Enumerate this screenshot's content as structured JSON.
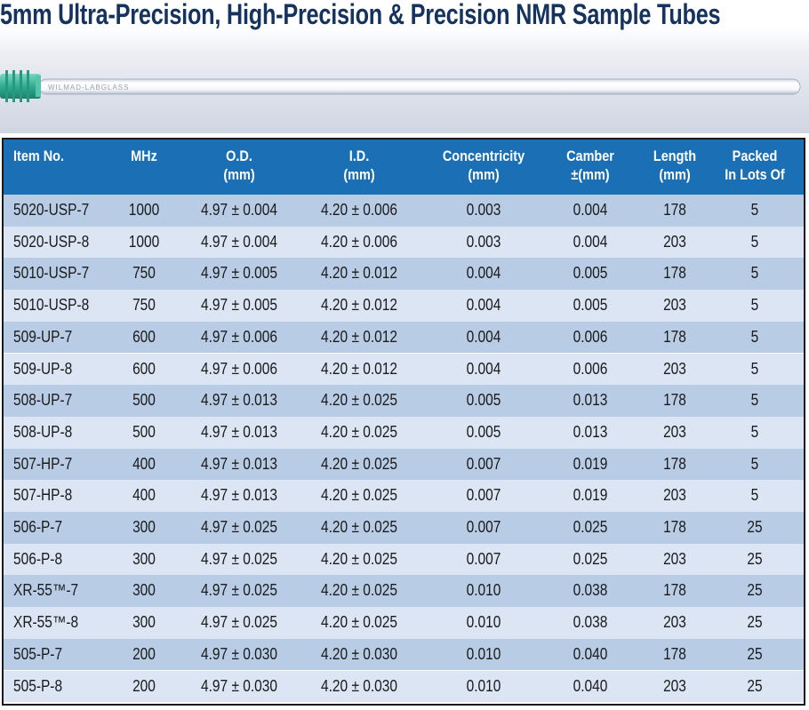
{
  "title": "5mm Ultra-Precision, High-Precision & Precision NMR Sample Tubes",
  "tube_imprint": "WILMAD-LABGLASS",
  "colors": {
    "header_blue": "#1a6fb5",
    "row_dark": "#b9cce6",
    "row_light": "#dbe5f3",
    "title": "#16335e",
    "cap": "#2fae93"
  },
  "table": {
    "headers": [
      {
        "key": "item",
        "line1": "Item No.",
        "line2": ""
      },
      {
        "key": "mhz",
        "line1": "MHz",
        "line2": ""
      },
      {
        "key": "od",
        "line1": "O.D.",
        "line2": "(mm)"
      },
      {
        "key": "id",
        "line1": "I.D.",
        "line2": "(mm)"
      },
      {
        "key": "conc",
        "line1": "Concentricity",
        "line2": "(mm)"
      },
      {
        "key": "camber",
        "line1": "Camber",
        "line2": "±(mm)"
      },
      {
        "key": "length",
        "line1": "Length",
        "line2": "(mm)"
      },
      {
        "key": "packed",
        "line1": "Packed",
        "line2": "In Lots Of"
      }
    ],
    "rows": [
      [
        "5020-USP-7",
        "1000",
        "4.97 ± 0.004",
        "4.20 ± 0.006",
        "0.003",
        "0.004",
        "178",
        "5"
      ],
      [
        "5020-USP-8",
        "1000",
        "4.97 ± 0.004",
        "4.20 ± 0.006",
        "0.003",
        "0.004",
        "203",
        "5"
      ],
      [
        "5010-USP-7",
        "750",
        "4.97 ± 0.005",
        "4.20 ± 0.012",
        "0.004",
        "0.005",
        "178",
        "5"
      ],
      [
        "5010-USP-8",
        "750",
        "4.97 ± 0.005",
        "4.20 ± 0.012",
        "0.004",
        "0.005",
        "203",
        "5"
      ],
      [
        "509-UP-7",
        "600",
        "4.97 ± 0.006",
        "4.20 ± 0.012",
        "0.004",
        "0.006",
        "178",
        "5"
      ],
      [
        "509-UP-8",
        "600",
        "4.97 ± 0.006",
        "4.20 ± 0.012",
        "0.004",
        "0.006",
        "203",
        "5"
      ],
      [
        "508-UP-7",
        "500",
        "4.97 ± 0.013",
        "4.20 ± 0.025",
        "0.005",
        "0.013",
        "178",
        "5"
      ],
      [
        "508-UP-8",
        "500",
        "4.97 ± 0.013",
        "4.20 ± 0.025",
        "0.005",
        "0.013",
        "203",
        "5"
      ],
      [
        "507-HP-7",
        "400",
        "4.97 ± 0.013",
        "4.20 ± 0.025",
        "0.007",
        "0.019",
        "178",
        "5"
      ],
      [
        "507-HP-8",
        "400",
        "4.97 ± 0.013",
        "4.20 ± 0.025",
        "0.007",
        "0.019",
        "203",
        "5"
      ],
      [
        "506-P-7",
        "300",
        "4.97 ± 0.025",
        "4.20 ± 0.025",
        "0.007",
        "0.025",
        "178",
        "25"
      ],
      [
        "506-P-8",
        "300",
        "4.97 ± 0.025",
        "4.20 ± 0.025",
        "0.007",
        "0.025",
        "203",
        "25"
      ],
      [
        "XR-55™-7",
        "300",
        "4.97 ± 0.025",
        "4.20 ± 0.025",
        "0.010",
        "0.038",
        "178",
        "25"
      ],
      [
        "XR-55™-8",
        "300",
        "4.97 ± 0.025",
        "4.20 ± 0.025",
        "0.010",
        "0.038",
        "203",
        "25"
      ],
      [
        "505-P-7",
        "200",
        "4.97 ± 0.030",
        "4.20 ± 0.030",
        "0.010",
        "0.040",
        "178",
        "25"
      ],
      [
        "505-P-8",
        "200",
        "4.97 ± 0.030",
        "4.20 ± 0.030",
        "0.010",
        "0.040",
        "203",
        "25"
      ]
    ]
  }
}
